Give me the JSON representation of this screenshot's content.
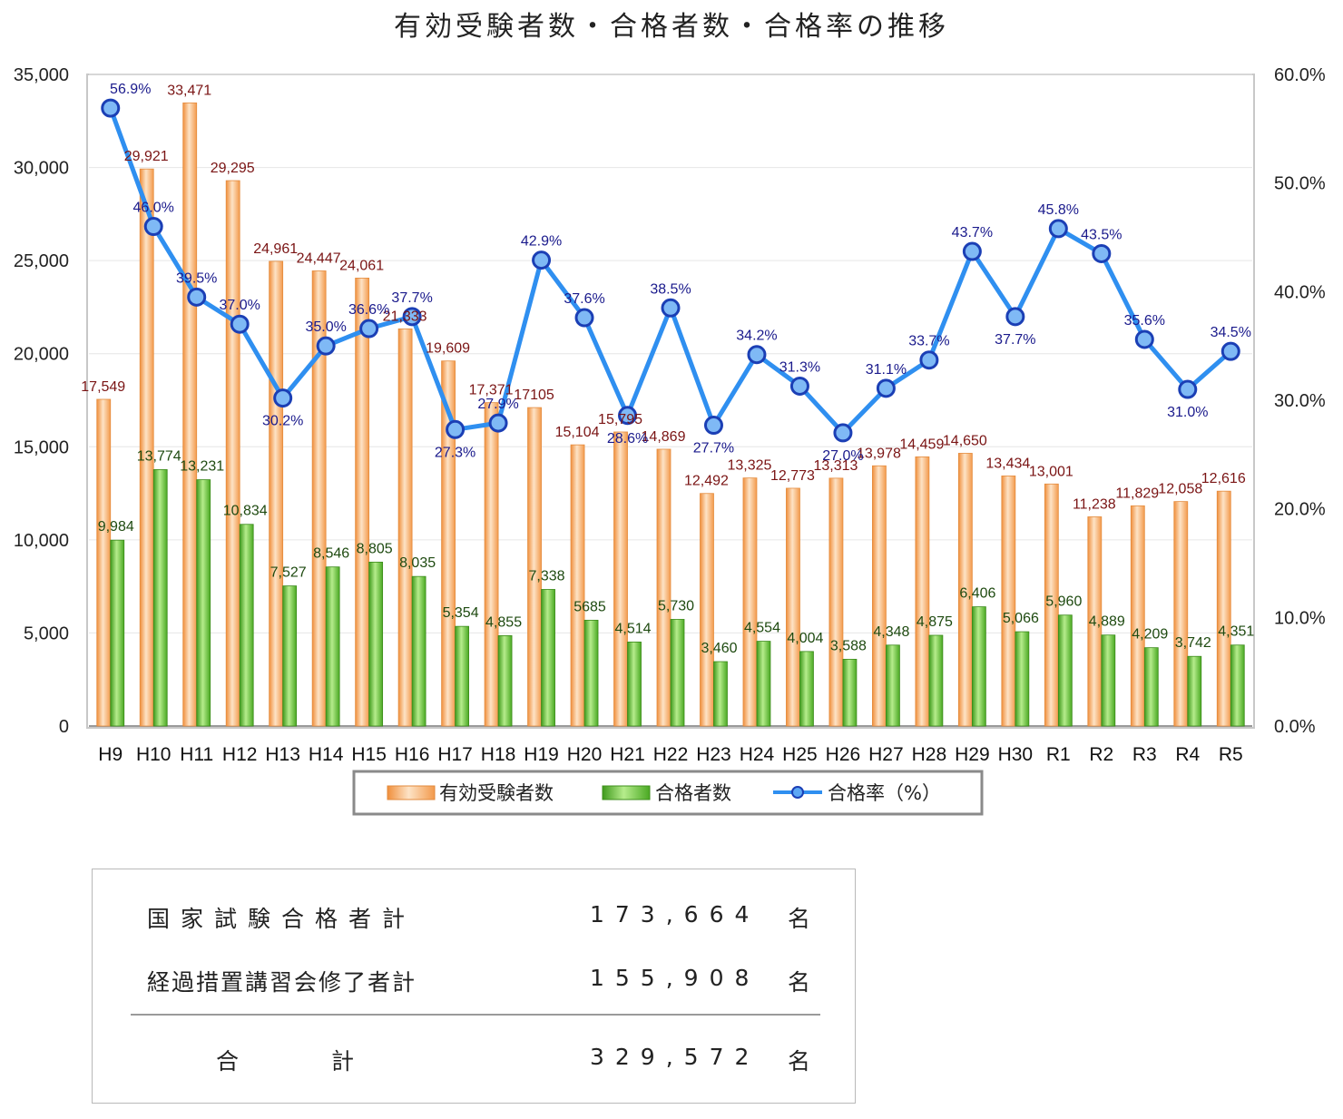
{
  "page_title": "有効受験者数・合格者数・合格率の推移",
  "chart_data": {
    "type": "bar",
    "title": "有効受験者数・合格者数・合格率の推移",
    "categories": [
      "H9",
      "H10",
      "H11",
      "H12",
      "H13",
      "H14",
      "H15",
      "H16",
      "H17",
      "H18",
      "H19",
      "H20",
      "H21",
      "H22",
      "H23",
      "H24",
      "H25",
      "H26",
      "H27",
      "H28",
      "H29",
      "H30",
      "R1",
      "R2",
      "R3",
      "R4",
      "R5"
    ],
    "series": [
      {
        "name": "有効受験者数",
        "kind": "bar",
        "axis": "left",
        "color": "#f5a65b",
        "values": [
          17549,
          29921,
          33471,
          29295,
          24961,
          24447,
          24061,
          21333,
          19609,
          17371,
          17105,
          15104,
          15795,
          14869,
          12492,
          13325,
          12773,
          13313,
          13978,
          14459,
          14650,
          13434,
          13001,
          11238,
          11829,
          12058,
          12616
        ],
        "labels": [
          "17,549",
          "29,921",
          "33,471",
          "29,295",
          "24,961",
          "24,447",
          "24,061",
          "21,333",
          "19,609",
          "17,371",
          "17105",
          "15,104",
          "15,795",
          "14,869",
          "12,492",
          "13,325",
          "12,773",
          "13,313",
          "13,978",
          "14,459",
          "14,650",
          "13,434",
          "13,001",
          "11,238",
          "11,829",
          "12,058",
          "12,616"
        ]
      },
      {
        "name": "合格者数",
        "kind": "bar",
        "axis": "left",
        "color": "#6cc23f",
        "values": [
          9984,
          13774,
          13231,
          10834,
          7527,
          8546,
          8805,
          8035,
          5354,
          4855,
          7338,
          5685,
          4514,
          5730,
          3460,
          4554,
          4004,
          3588,
          4348,
          4875,
          6406,
          5066,
          5960,
          4889,
          4209,
          3742,
          4351
        ],
        "labels": [
          "9,984",
          "13,774",
          "13,231",
          "10,834",
          "7,527",
          "8,546",
          "8,805",
          "8,035",
          "5,354",
          "4,855",
          "7,338",
          "5685",
          "4,514",
          "5,730",
          "3,460",
          "4,554",
          "4,004",
          "3,588",
          "4,348",
          "4,875",
          "6,406",
          "5,066",
          "5,960",
          "4,889",
          "4,209",
          "3,742",
          "4,351"
        ]
      },
      {
        "name": "合格率（%）",
        "kind": "line",
        "axis": "right",
        "color": "#2f8ff0",
        "values": [
          56.9,
          46.0,
          39.5,
          37.0,
          30.2,
          35.0,
          36.6,
          37.7,
          27.3,
          27.9,
          42.9,
          37.6,
          28.6,
          38.5,
          27.7,
          34.2,
          31.3,
          27.0,
          31.1,
          33.7,
          43.7,
          37.7,
          45.8,
          43.5,
          35.6,
          31.0,
          34.5
        ],
        "labels": [
          "56.9%",
          "46.0%",
          "39.5%",
          "37.0%",
          "30.2%",
          "35.0%",
          "36.6%",
          "37.7%",
          "27.3%",
          "27.9%",
          "42.9%",
          "37.6%",
          "28.6%",
          "38.5%",
          "27.7%",
          "34.2%",
          "31.3%",
          "27.0%",
          "31.1%",
          "33.7%",
          "43.7%",
          "37.7%",
          "45.8%",
          "43.5%",
          "35.6%",
          "31.0%",
          "34.5%"
        ]
      }
    ],
    "y_left": {
      "range": [
        0,
        35000
      ],
      "ticks": [
        "0",
        "5,000",
        "10,000",
        "15,000",
        "20,000",
        "25,000",
        "30,000",
        "35,000"
      ]
    },
    "y_right": {
      "range": [
        0,
        60
      ],
      "ticks": [
        "0.0%",
        "10.0%",
        "20.0%",
        "30.0%",
        "40.0%",
        "50.0%",
        "60.0%"
      ]
    },
    "grid": true,
    "legend_position": "bottom"
  },
  "legend": {
    "applicants": "有効受験者数",
    "passers": "合格者数",
    "rate": "合格率（%）"
  },
  "summary": {
    "exam_label": "国家試験合格者計",
    "exam_value": "173,664",
    "course_label": "経過措置講習会修了者計",
    "course_value": "155,908",
    "total_label_a": "合",
    "total_label_b": "計",
    "total_value": "329,572",
    "unit": "名"
  }
}
